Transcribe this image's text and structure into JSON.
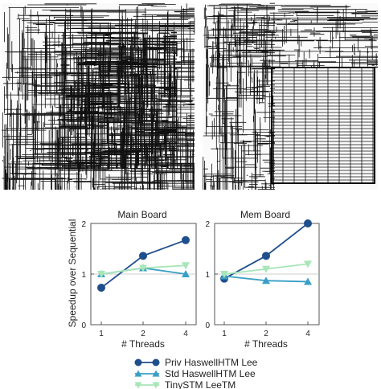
{
  "chart_data": [
    {
      "type": "line",
      "title": "Main Board",
      "xlabel": "",
      "ylabel": "Speedup over Sequential",
      "categories": [
        "1",
        "2",
        "4"
      ],
      "ylim": [
        0,
        2
      ],
      "yticks": [
        "0",
        "1",
        "2"
      ],
      "grid": "horizontal at 1",
      "series": [
        {
          "name": "Priv HaswellHTM Lee",
          "values": [
            0.73,
            1.36,
            1.67
          ],
          "color": "#1f4e8c",
          "marker": "circle"
        },
        {
          "name": "Std HaswellHTM Lee",
          "values": [
            1.0,
            1.12,
            1.0
          ],
          "color": "#3a9fc6",
          "marker": "triangle-up"
        },
        {
          "name": "TinySTM LeeTM",
          "values": [
            1.0,
            1.12,
            1.17
          ],
          "color": "#a8e6b8",
          "marker": "triangle-down"
        }
      ]
    },
    {
      "type": "line",
      "title": "Mem Board",
      "xlabel": "",
      "ylabel": "",
      "categories": [
        "1",
        "2",
        "4"
      ],
      "ylim": [
        0,
        2
      ],
      "yticks": [
        "0",
        "1",
        "2"
      ],
      "grid": "horizontal at 1",
      "series": [
        {
          "name": "Priv HaswellHTM Lee",
          "values": [
            0.91,
            1.36,
            2.0
          ],
          "color": "#1f4e8c",
          "marker": "circle"
        },
        {
          "name": "Std HaswellHTM Lee",
          "values": [
            0.96,
            0.87,
            0.85
          ],
          "color": "#3a9fc6",
          "marker": "triangle-up"
        },
        {
          "name": "TinySTM LeeTM",
          "values": [
            1.0,
            1.1,
            1.2
          ],
          "color": "#a8e6b8",
          "marker": "triangle-down"
        }
      ]
    }
  ],
  "shared_xlabel": "# Threads",
  "legend": {
    "placement": "bottom-center",
    "entries": [
      "Priv HaswellHTM Lee",
      "Std HaswellHTM Lee",
      "TinySTM LeeTM"
    ]
  },
  "images": [
    {
      "name": "main-board-routing-image",
      "description": ""
    },
    {
      "name": "mem-board-routing-image",
      "description": ""
    }
  ]
}
